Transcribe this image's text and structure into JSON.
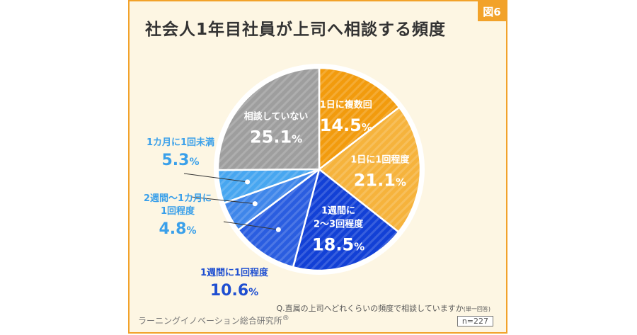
{
  "figure_label": "図6",
  "question": "Q.直属の上司へどれくらいの頻度で相談していますか",
  "question_suffix": "(単一回答)",
  "source": "ラーニングイノベーション総合研究所",
  "source_mark": "®",
  "sample_size": "n=227",
  "colors": {
    "frame": "#f2a22a",
    "background": "#fdf6e3",
    "dark_blue_text": "#1f4fd1",
    "light_blue_text": "#3aa0ea"
  },
  "chart_data": {
    "type": "pie",
    "title": "社会人1年目社員が上司へ相談する頻度",
    "start": "12 o'clock, clockwise",
    "slices": [
      {
        "label": "1日に複数回",
        "value": 14.5,
        "value_text": "14.5",
        "color": "#f29b0d",
        "label_position": "inside"
      },
      {
        "label": "1日に1回程度",
        "value": 21.1,
        "value_text": "21.1",
        "color": "#f6b33c",
        "label_position": "inside"
      },
      {
        "label": "1週間に2〜3回程度",
        "label_lines": [
          "1週間に",
          "2〜3回程度"
        ],
        "value": 18.5,
        "value_text": "18.5",
        "color": "#1240d6",
        "label_position": "inside"
      },
      {
        "label": "1週間に1回程度",
        "value": 10.6,
        "value_text": "10.6",
        "color": "#2a5de0",
        "label_position": "outside"
      },
      {
        "label": "2週間〜1カ月に1回程度",
        "label_lines": [
          "2週間〜1カ月に",
          "1回程度"
        ],
        "value": 4.8,
        "value_text": "4.8",
        "color": "#3f86ea",
        "label_position": "outside"
      },
      {
        "label": "1カ月に1回未満",
        "value": 5.3,
        "value_text": "5.3",
        "color": "#47a6f0",
        "label_position": "outside"
      },
      {
        "label": "相談していない",
        "value": 25.1,
        "value_text": "25.1",
        "color": "#9e9e9e",
        "label_position": "inside"
      }
    ],
    "unit": "%"
  }
}
